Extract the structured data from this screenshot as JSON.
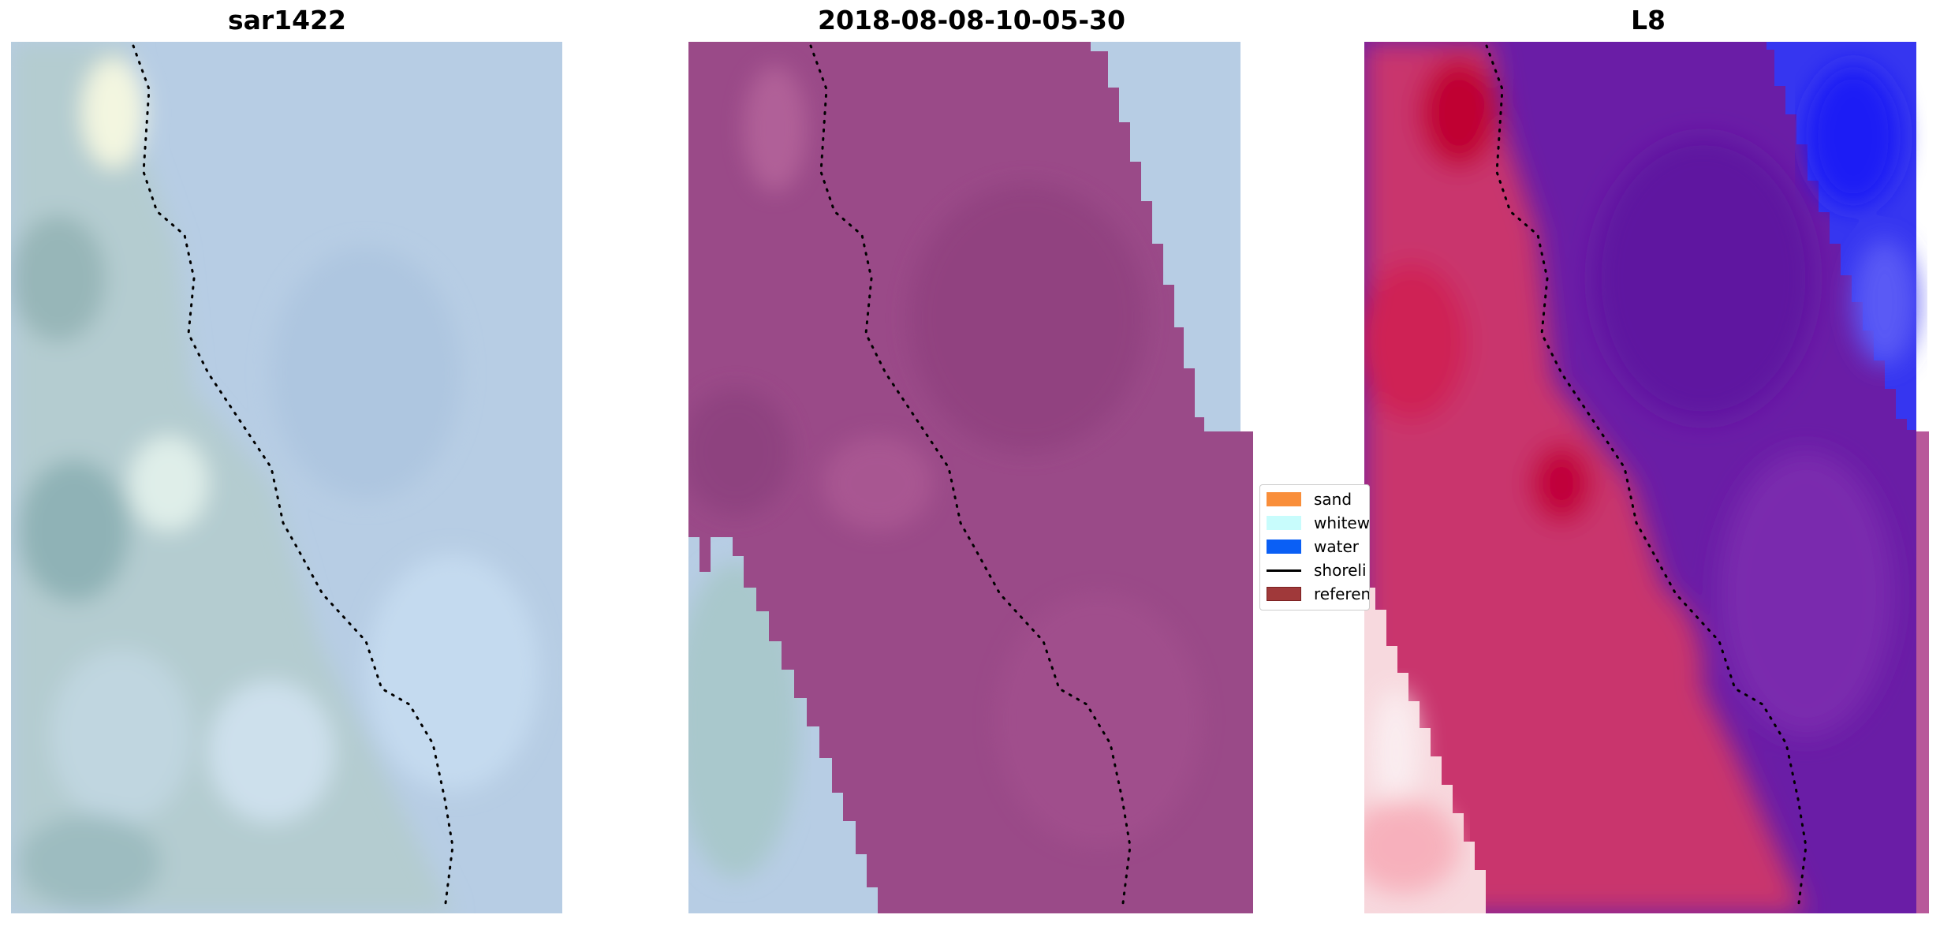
{
  "panels": [
    {
      "title": "sar1422"
    },
    {
      "title": "2018-08-08-10-05-30"
    },
    {
      "title": "L8"
    }
  ],
  "legend": {
    "items": [
      {
        "label": "sand",
        "color": "#f98e3a",
        "kind": "patch"
      },
      {
        "label": "whitew",
        "color": "#c8fcfc",
        "kind": "patch"
      },
      {
        "label": "water",
        "color": "#0a5ff5",
        "kind": "patch"
      },
      {
        "label": "shoreli",
        "color": "#000000",
        "kind": "line"
      },
      {
        "label": "referen",
        "color": "#a0393a",
        "kind": "patch"
      }
    ]
  },
  "colors": {
    "ocean_pale": "#b9cfe6",
    "land_pale": "#b6ccd2",
    "classified_purple": "#9a4a88",
    "l8_red": "#d0306a",
    "l8_purple": "#6a1da6",
    "l8_blue": "#3c3cf5"
  }
}
